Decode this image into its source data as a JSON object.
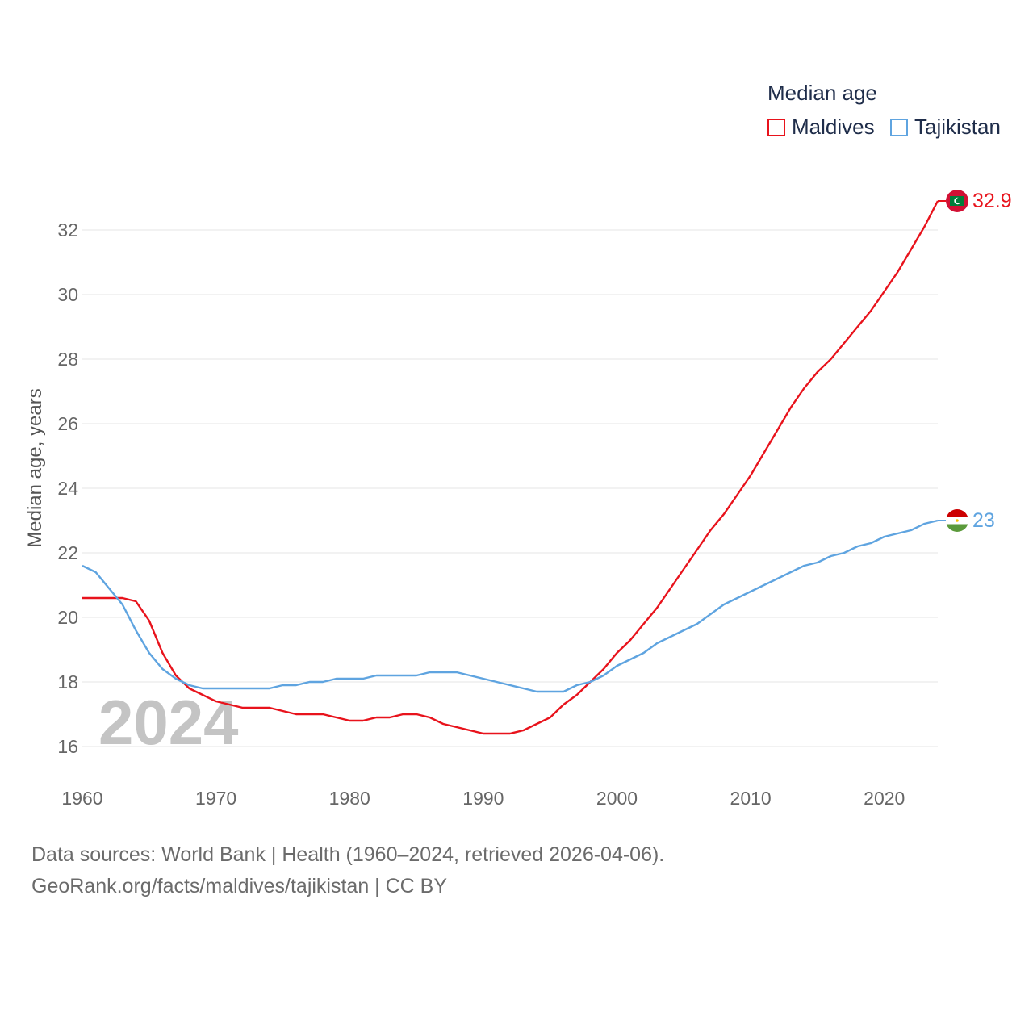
{
  "legend": {
    "title": "Median age",
    "items": [
      {
        "name": "Maldives",
        "color": "#e8131c"
      },
      {
        "name": "Tajikistan",
        "color": "#5fa4e0"
      }
    ]
  },
  "year_label": "2024",
  "footer": {
    "line1": "Data sources: World Bank | Health (1960–2024, retrieved 2026-04-06).",
    "line2": "GeoRank.org/facts/maldives/tajikistan | CC BY"
  },
  "chart_data": {
    "type": "line",
    "title": "Median age",
    "xlabel": "",
    "ylabel": "Median age, years",
    "xlim": [
      1960,
      2024
    ],
    "ylim": [
      15,
      33.5
    ],
    "x_ticks": [
      1960,
      1970,
      1980,
      1990,
      2000,
      2010,
      2020
    ],
    "y_ticks": [
      16,
      18,
      20,
      22,
      24,
      26,
      28,
      30,
      32
    ],
    "grid": true,
    "legend_position": "top-right",
    "x": [
      1960,
      1961,
      1962,
      1963,
      1964,
      1965,
      1966,
      1967,
      1968,
      1969,
      1970,
      1971,
      1972,
      1973,
      1974,
      1975,
      1976,
      1977,
      1978,
      1979,
      1980,
      1981,
      1982,
      1983,
      1984,
      1985,
      1986,
      1987,
      1988,
      1989,
      1990,
      1991,
      1992,
      1993,
      1994,
      1995,
      1996,
      1997,
      1998,
      1999,
      2000,
      2001,
      2002,
      2003,
      2004,
      2005,
      2006,
      2007,
      2008,
      2009,
      2010,
      2011,
      2012,
      2013,
      2014,
      2015,
      2016,
      2017,
      2018,
      2019,
      2020,
      2021,
      2022,
      2023,
      2024
    ],
    "series": [
      {
        "name": "Maldives",
        "color": "#e8131c",
        "end_label": "32.9",
        "values": [
          20.6,
          20.6,
          20.6,
          20.6,
          20.5,
          19.9,
          18.9,
          18.2,
          17.8,
          17.6,
          17.4,
          17.3,
          17.2,
          17.2,
          17.2,
          17.1,
          17.0,
          17.0,
          17.0,
          16.9,
          16.8,
          16.8,
          16.9,
          16.9,
          17.0,
          17.0,
          16.9,
          16.7,
          16.6,
          16.5,
          16.4,
          16.4,
          16.4,
          16.5,
          16.7,
          16.9,
          17.3,
          17.6,
          18.0,
          18.4,
          18.9,
          19.3,
          19.8,
          20.3,
          20.9,
          21.5,
          22.1,
          22.7,
          23.2,
          23.8,
          24.4,
          25.1,
          25.8,
          26.5,
          27.1,
          27.6,
          28.0,
          28.5,
          29.0,
          29.5,
          30.1,
          30.7,
          31.4,
          32.1,
          32.9
        ]
      },
      {
        "name": "Tajikistan",
        "color": "#5fa4e0",
        "end_label": "23",
        "values": [
          21.6,
          21.4,
          20.9,
          20.4,
          19.6,
          18.9,
          18.4,
          18.1,
          17.9,
          17.8,
          17.8,
          17.8,
          17.8,
          17.8,
          17.8,
          17.9,
          17.9,
          18.0,
          18.0,
          18.1,
          18.1,
          18.1,
          18.2,
          18.2,
          18.2,
          18.2,
          18.3,
          18.3,
          18.3,
          18.2,
          18.1,
          18.0,
          17.9,
          17.8,
          17.7,
          17.7,
          17.7,
          17.9,
          18.0,
          18.2,
          18.5,
          18.7,
          18.9,
          19.2,
          19.4,
          19.6,
          19.8,
          20.1,
          20.4,
          20.6,
          20.8,
          21.0,
          21.2,
          21.4,
          21.6,
          21.7,
          21.9,
          22.0,
          22.2,
          22.3,
          22.5,
          22.6,
          22.7,
          22.9,
          23.0
        ]
      }
    ]
  }
}
